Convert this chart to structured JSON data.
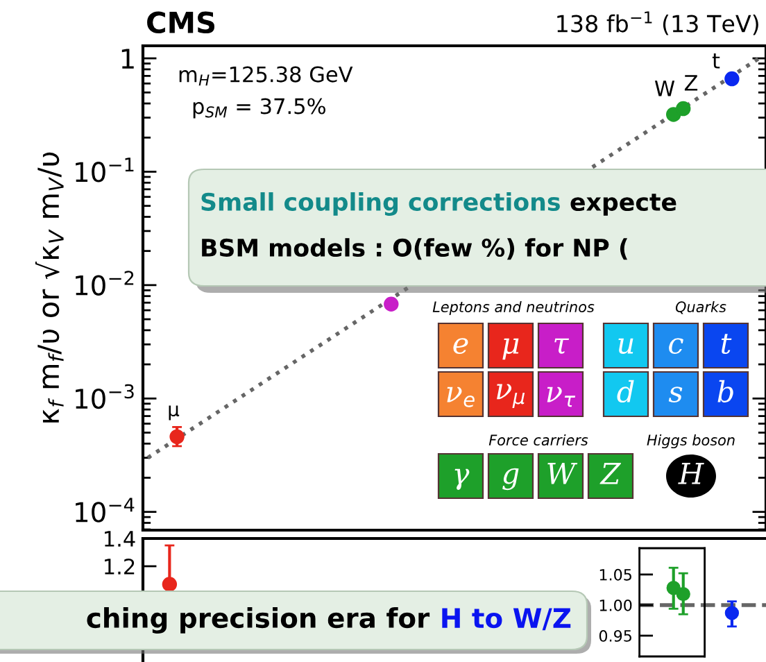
{
  "chart_data": [
    {
      "type": "scatter",
      "title": "CMS",
      "subtitle": "138 fb$^{−1}$ (13 TeV)",
      "ylabel": "κ$_{f}$ m$_{f}$/υ or √κ$_{V}$ m$_{V}$/υ",
      "log": "y",
      "ylim": [
        6.9e-05,
        1.29
      ],
      "categories": [
        null,
        null,
        null,
        null,
        null,
        null,
        null,
        null,
        null,
        null,
        null,
        null,
        null,
        null,
        null,
        null,
        null,
        null,
        null,
        null,
        null,
        null,
        null,
        null,
        null,
        null,
        null,
        null,
        null,
        null,
        null,
        null,
        null,
        null,
        null,
        null,
        null,
        null,
        null,
        null,
        null,
        null,
        null,
        null,
        null,
        null,
        null,
        null,
        null,
        null,
        null,
        null,
        null,
        null,
        null,
        null,
        null,
        null,
        null,
        null,
        null,
        null,
        null,
        null
      ],
      "yticks": [
        {
          "value": 0.0001,
          "label": "10$^{−4}$"
        },
        {
          "value": 0.001,
          "label": "10$^{−3}$"
        },
        {
          "value": 0.01,
          "label": "10$^{−2}$"
        },
        {
          "value": 0.1,
          "label": "10$^{−1}$"
        },
        1
      ],
      "tick_labels": "y",
      "marker": "circle",
      "series": [
        {
          "type": "line",
          "line_style": "dotted",
          "marker": "none",
          "color": "#666666",
          "values": [
            0.0003,
            null,
            null,
            null,
            null,
            null,
            null,
            null,
            null,
            null,
            null,
            null,
            null,
            null,
            null,
            null,
            null,
            null,
            null,
            null,
            null,
            null,
            null,
            null,
            null,
            null,
            null,
            null,
            null,
            null,
            null,
            null,
            null,
            null,
            null,
            null,
            null,
            null,
            null,
            null,
            null,
            null,
            null,
            null,
            null,
            null,
            null,
            null,
            null,
            null,
            null,
            null,
            null,
            null,
            null,
            null,
            null,
            null,
            null,
            null,
            null,
            null,
            null,
            1.03
          ]
        },
        {
          "color": "#e8261c",
          "values": [
            null,
            null,
            null,
            0.00046,
            null,
            null,
            null,
            null,
            null,
            null,
            null,
            null,
            null,
            null,
            null,
            null,
            null,
            null,
            null,
            null,
            null,
            null,
            null,
            null,
            null,
            null,
            null,
            null,
            null,
            null,
            null,
            null,
            null,
            null,
            null,
            null,
            null,
            null,
            null,
            null,
            null,
            null,
            null,
            null,
            null,
            null,
            null,
            null,
            null,
            null,
            null,
            null,
            null,
            null,
            null,
            null,
            null,
            null,
            null,
            null,
            null,
            null,
            null,
            null
          ],
          "errors": [
            null,
            null,
            null,
            [
              0.00038,
              0.00056
            ],
            null,
            null,
            null,
            null,
            null,
            null,
            null,
            null,
            null,
            null,
            null,
            null,
            null,
            null,
            null,
            null,
            null,
            null,
            null,
            null,
            null,
            null,
            null,
            null,
            null,
            null,
            null,
            null,
            null,
            null,
            null,
            null,
            null,
            null,
            null,
            null,
            null,
            null,
            null,
            null,
            null,
            null,
            null,
            null,
            null,
            null,
            null,
            null,
            null,
            null,
            null,
            null,
            null,
            null,
            null,
            null,
            null,
            null,
            null,
            null
          ]
        },
        {
          "color": "#c81ec8",
          "values": [
            null,
            null,
            null,
            null,
            null,
            null,
            null,
            null,
            null,
            null,
            null,
            null,
            null,
            null,
            null,
            null,
            null,
            null,
            null,
            null,
            null,
            null,
            null,
            null,
            null,
            0.0068,
            null,
            null,
            null,
            null,
            null,
            null,
            null,
            null,
            null,
            null,
            null,
            null,
            null,
            null,
            null,
            null,
            null,
            null,
            null,
            null,
            null,
            null,
            null,
            null,
            null,
            null,
            null,
            null,
            null,
            null,
            null,
            null,
            null,
            null,
            null,
            null,
            null,
            null
          ]
        },
        {
          "color": "#1ea02a",
          "values": [
            null,
            null,
            null,
            null,
            null,
            null,
            null,
            null,
            null,
            null,
            null,
            null,
            null,
            null,
            null,
            null,
            null,
            null,
            null,
            null,
            null,
            null,
            null,
            null,
            null,
            null,
            null,
            null,
            null,
            null,
            null,
            null,
            null,
            null,
            null,
            null,
            null,
            null,
            null,
            null,
            null,
            null,
            null,
            null,
            null,
            null,
            null,
            null,
            null,
            null,
            null,
            null,
            null,
            null,
            0.32,
            0.36,
            null,
            null,
            null,
            null,
            null,
            null,
            null,
            null
          ]
        },
        {
          "color": "#0a28f0",
          "values": [
            null,
            null,
            null,
            null,
            null,
            null,
            null,
            null,
            null,
            null,
            null,
            null,
            null,
            null,
            null,
            null,
            null,
            null,
            null,
            null,
            null,
            null,
            null,
            null,
            null,
            null,
            null,
            null,
            null,
            null,
            null,
            null,
            null,
            null,
            null,
            null,
            null,
            null,
            null,
            null,
            null,
            null,
            null,
            null,
            null,
            null,
            null,
            null,
            null,
            null,
            null,
            null,
            null,
            null,
            null,
            null,
            null,
            null,
            null,
            null,
            0.66,
            null,
            null,
            null
          ]
        }
      ],
      "annotations": [
        "m$_{H}$=125.38 GeV",
        "p$_{SM}$ = 37.5%",
        "Small coupling corrections",
        "expecte",
        "BSM models : O(few %) for NP (",
        "μ",
        "W",
        "Z",
        "t",
        "Leptons and neutrinos",
        "Quarks",
        "Force carriers",
        "Higgs boson",
        "e",
        "μ",
        "τ",
        "ν$_{e}$",
        "ν$_{μ}$",
        "ν$_{τ}$",
        "u",
        "c",
        "t",
        "d",
        "s",
        "b",
        "γ",
        "g",
        "W",
        "Z",
        "H"
      ]
    },
    {
      "type": "scatter",
      "ylim": [
        0.5,
        1.4
      ],
      "categories": [
        null,
        null,
        null,
        null,
        null,
        null,
        null,
        null,
        null,
        null,
        null,
        null,
        null,
        null,
        null,
        null,
        null,
        null,
        null,
        null,
        null,
        null,
        null,
        null,
        null,
        null,
        null,
        null,
        null,
        null,
        null,
        null,
        null,
        null,
        null,
        null,
        null,
        null,
        null,
        null,
        null,
        null,
        null,
        null,
        null,
        null,
        null,
        null,
        null,
        null,
        null,
        null,
        null,
        null,
        null,
        null,
        null,
        null,
        null,
        null,
        null,
        null,
        null,
        null
      ],
      "yticks": [
        1.2,
        1.4
      ],
      "tick_labels": "y",
      "marker": "circle",
      "series": [
        {
          "color": "#e8261c",
          "values": [
            null,
            null,
            null,
            1.07,
            null,
            null,
            null,
            null,
            null,
            null,
            null,
            null,
            null,
            null,
            null,
            null,
            null,
            null,
            null,
            null,
            null,
            null,
            null,
            null,
            null,
            null,
            null,
            null,
            null,
            null,
            null,
            null,
            null,
            null,
            null,
            null,
            null,
            null,
            null,
            null,
            null,
            null,
            null,
            null,
            null,
            null,
            null,
            null,
            null,
            null,
            null,
            null,
            null,
            null,
            null,
            null,
            null,
            null,
            null,
            null,
            null,
            null,
            null,
            null
          ],
          "errors": [
            null,
            null,
            null,
            [
              0.87,
              1.35
            ],
            null,
            null,
            null,
            null,
            null,
            null,
            null,
            null,
            null,
            null,
            null,
            null,
            null,
            null,
            null,
            null,
            null,
            null,
            null,
            null,
            null,
            null,
            null,
            null,
            null,
            null,
            null,
            null,
            null,
            null,
            null,
            null,
            null,
            null,
            null,
            null,
            null,
            null,
            null,
            null,
            null,
            null,
            null,
            null,
            null,
            null,
            null,
            null,
            null,
            null,
            null,
            null,
            null,
            null,
            null,
            null,
            null,
            null,
            null,
            null
          ]
        }
      ],
      "annotations": [
        "ching precision era for",
        "H to W/Z"
      ]
    },
    {
      "type": "scatter",
      "ylim": [
        0.916,
        1.093
      ],
      "yticks": [
        {
          "value": 0.95,
          "label": "0.95"
        },
        {
          "value": 1.0,
          "label": "1.00"
        },
        {
          "value": 1.05,
          "label": "1.05"
        }
      ],
      "tick_labels": "y",
      "marker": "circle",
      "categories": [
        null,
        null,
        null,
        null,
        null,
        null,
        null,
        null,
        null,
        null,
        null,
        null,
        null
      ],
      "ref_lines": [
        {
          "axis": "y",
          "value": 1.0,
          "line_style": "dashed",
          "color": "#666666"
        }
      ],
      "series": [
        {
          "color": "#1ea02a",
          "values": [
            null,
            null,
            null,
            1.028,
            1.018,
            null,
            null,
            null,
            null,
            null,
            null,
            null,
            null
          ],
          "errors": [
            null,
            null,
            null,
            [
              0.994,
              1.061
            ],
            [
              0.985,
              1.052
            ],
            null,
            null,
            null,
            null,
            null,
            null,
            null,
            null
          ]
        },
        {
          "color": "#0a28f0",
          "values": [
            null,
            null,
            null,
            null,
            null,
            null,
            null,
            null,
            null,
            0.987,
            null,
            null,
            null
          ],
          "errors": [
            null,
            null,
            null,
            null,
            null,
            null,
            null,
            null,
            null,
            [
              0.965,
              1.006
            ],
            null,
            null,
            null
          ]
        }
      ]
    }
  ]
}
